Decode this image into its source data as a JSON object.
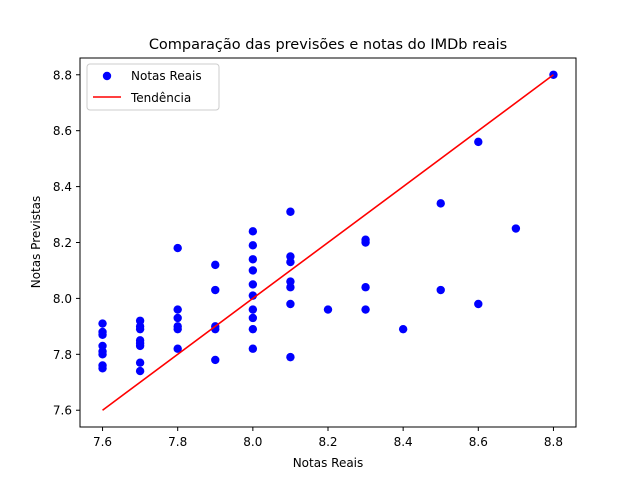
{
  "chart_data": {
    "type": "scatter",
    "title": "Comparação das previsões e notas do IMDb reais",
    "xlabel": "Notas Reais",
    "ylabel": "Notas Previstas",
    "xlim": [
      7.54,
      8.86
    ],
    "ylim": [
      7.54,
      8.86
    ],
    "xticks": [
      "7.6",
      "7.8",
      "8.0",
      "8.2",
      "8.4",
      "8.6",
      "8.8"
    ],
    "yticks": [
      "7.6",
      "7.8",
      "8.0",
      "8.2",
      "8.4",
      "8.6",
      "8.8"
    ],
    "grid": false,
    "legend_position": "top-left",
    "series": [
      {
        "name": "Notas Reais",
        "kind": "scatter",
        "color": "#0000ff",
        "points": [
          [
            7.6,
            7.91
          ],
          [
            7.6,
            7.88
          ],
          [
            7.6,
            7.87
          ],
          [
            7.6,
            7.83
          ],
          [
            7.6,
            7.81
          ],
          [
            7.6,
            7.8
          ],
          [
            7.6,
            7.76
          ],
          [
            7.6,
            7.75
          ],
          [
            7.7,
            7.92
          ],
          [
            7.7,
            7.9
          ],
          [
            7.7,
            7.89
          ],
          [
            7.7,
            7.85
          ],
          [
            7.7,
            7.84
          ],
          [
            7.7,
            7.83
          ],
          [
            7.7,
            7.77
          ],
          [
            7.7,
            7.74
          ],
          [
            7.8,
            8.18
          ],
          [
            7.8,
            7.96
          ],
          [
            7.8,
            7.93
          ],
          [
            7.8,
            7.9
          ],
          [
            7.8,
            7.89
          ],
          [
            7.8,
            7.82
          ],
          [
            7.9,
            8.12
          ],
          [
            7.9,
            8.03
          ],
          [
            7.9,
            7.9
          ],
          [
            7.9,
            7.89
          ],
          [
            7.9,
            7.78
          ],
          [
            8.0,
            8.24
          ],
          [
            8.0,
            8.19
          ],
          [
            8.0,
            8.14
          ],
          [
            8.0,
            8.1
          ],
          [
            8.0,
            8.05
          ],
          [
            8.0,
            8.01
          ],
          [
            8.0,
            7.96
          ],
          [
            8.0,
            7.93
          ],
          [
            8.0,
            7.89
          ],
          [
            8.0,
            7.82
          ],
          [
            8.1,
            8.31
          ],
          [
            8.1,
            8.15
          ],
          [
            8.1,
            8.13
          ],
          [
            8.1,
            8.06
          ],
          [
            8.1,
            8.04
          ],
          [
            8.1,
            7.98
          ],
          [
            8.1,
            7.79
          ],
          [
            8.2,
            7.96
          ],
          [
            8.3,
            8.21
          ],
          [
            8.3,
            8.2
          ],
          [
            8.3,
            8.04
          ],
          [
            8.3,
            7.96
          ],
          [
            8.4,
            7.89
          ],
          [
            8.5,
            8.34
          ],
          [
            8.5,
            8.03
          ],
          [
            8.6,
            8.56
          ],
          [
            8.6,
            7.98
          ],
          [
            8.7,
            8.25
          ],
          [
            8.8,
            8.8
          ]
        ]
      },
      {
        "name": "Tendência",
        "kind": "line",
        "color": "#ff0000",
        "x": [
          7.6,
          8.8
        ],
        "y": [
          7.6,
          8.8
        ]
      }
    ]
  }
}
